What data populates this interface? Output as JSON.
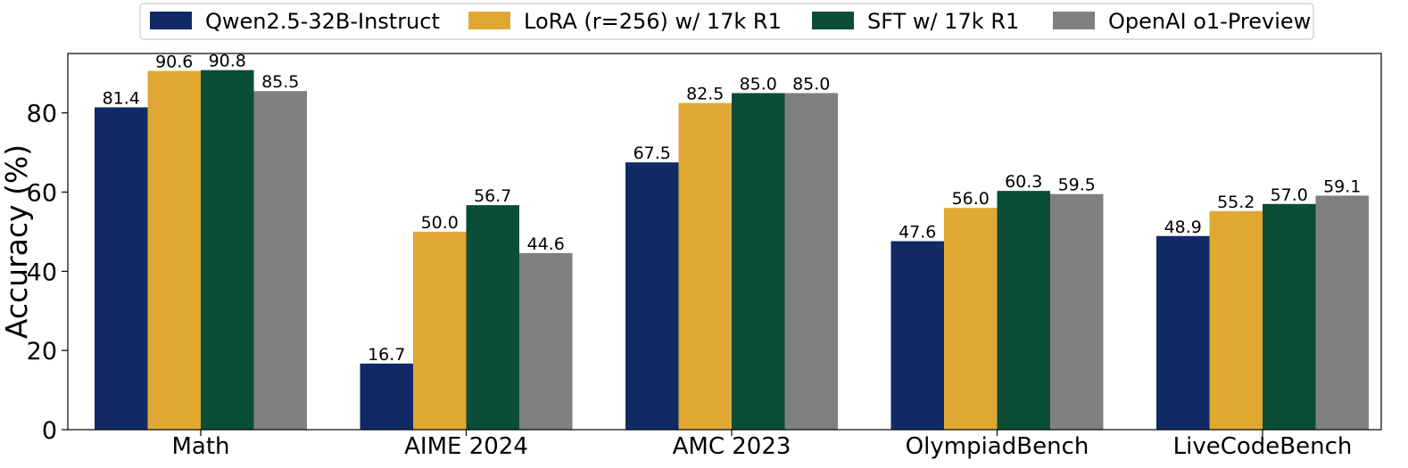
{
  "chart_data": {
    "type": "bar",
    "title": "",
    "xlabel": "",
    "ylabel": "Accuracy (%)",
    "ylim": [
      0,
      95
    ],
    "yticks": [
      0,
      20,
      40,
      60,
      80
    ],
    "grid": false,
    "legend_position": "top-center",
    "categories": [
      "Math",
      "AIME 2024",
      "AMC 2023",
      "OlympiadBench",
      "LiveCodeBench"
    ],
    "series": [
      {
        "name": "Qwen2.5-32B-Instruct",
        "color": "#112a66",
        "values": [
          81.4,
          16.7,
          67.5,
          47.6,
          48.9
        ],
        "labels": [
          "81.4",
          "16.7",
          "67.5",
          "47.6",
          "48.9"
        ]
      },
      {
        "name": "LoRA (r=256) w/ 17k R1",
        "color": "#e0a832",
        "values": [
          90.6,
          50.0,
          82.5,
          56.0,
          55.2
        ],
        "labels": [
          "90.6",
          "50.0",
          "82.5",
          "56.0",
          "55.2"
        ]
      },
      {
        "name": "SFT w/ 17k R1",
        "color": "#0c4d37",
        "values": [
          90.8,
          56.7,
          85.0,
          60.3,
          57.0
        ],
        "labels": [
          "90.8",
          "56.7",
          "85.0",
          "60.3",
          "57.0"
        ]
      },
      {
        "name": "OpenAI o1-Preview",
        "color": "#808080",
        "values": [
          85.5,
          44.6,
          85.0,
          59.5,
          59.1
        ],
        "labels": [
          "85.5",
          "44.6",
          "85.0",
          "59.5",
          "59.1"
        ]
      }
    ]
  }
}
